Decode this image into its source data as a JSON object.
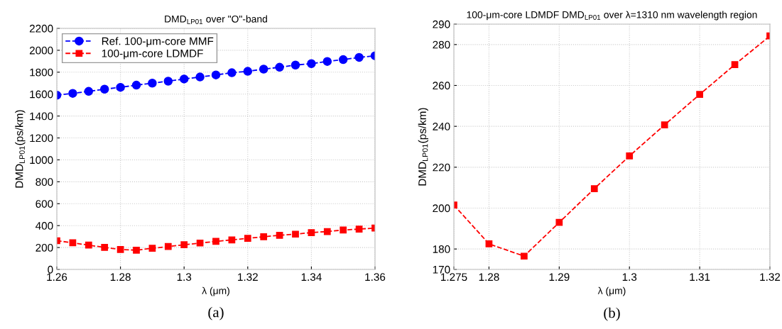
{
  "chart_data": [
    {
      "type": "line",
      "title": "DMD$_{LP01}$ over \"O\"-band",
      "xlabel": "λ (μm)",
      "ylabel": "DMD$_{LP01}$(ps/km)",
      "x": [
        1.26,
        1.265,
        1.27,
        1.275,
        1.28,
        1.285,
        1.29,
        1.295,
        1.3,
        1.305,
        1.31,
        1.315,
        1.32,
        1.325,
        1.33,
        1.335,
        1.34,
        1.345,
        1.35,
        1.355,
        1.36
      ],
      "series": [
        {
          "name": "Ref. 100-μm-core MMF",
          "color": "#0000ff",
          "marker": "circle",
          "values": [
            1590,
            1607,
            1625,
            1645,
            1662,
            1682,
            1700,
            1718,
            1738,
            1756,
            1775,
            1795,
            1808,
            1828,
            1845,
            1865,
            1878,
            1898,
            1915,
            1935,
            1950
          ]
        },
        {
          "name": "100-μm-core LDMDF",
          "color": "#ff0000",
          "marker": "square",
          "values": [
            262,
            243,
            222,
            201,
            182,
            176,
            193,
            209,
            225,
            241,
            256,
            270,
            284,
            298,
            312,
            322,
            336,
            346,
            360,
            368,
            378
          ]
        }
      ],
      "xlim": [
        1.26,
        1.36
      ],
      "xticks": [
        1.26,
        1.28,
        {
          "value": 1.3,
          "label": "1.3"
        },
        1.32,
        1.34,
        1.36
      ],
      "ylim": [
        0,
        2200
      ],
      "yticks": [
        0,
        200,
        400,
        600,
        800,
        1000,
        1200,
        1400,
        1600,
        1800,
        2000,
        2200
      ],
      "grid": true,
      "legend": "top left",
      "line_style": "dashed",
      "annotations": [
        "(a)"
      ]
    },
    {
      "type": "line",
      "title": "100-μm-core LDMDF DMD$_{LP01}$ over λ=1310 nm wavelength region",
      "xlabel": "λ (μm)",
      "ylabel": "DMD$_{LP01}$(ps/km)",
      "x": [
        1.275,
        1.28,
        1.285,
        1.29,
        1.295,
        1.3,
        1.305,
        1.31,
        1.315,
        1.32
      ],
      "series": [
        {
          "color": "#ff0000",
          "marker": "square",
          "values": [
            201.5,
            182.5,
            176.5,
            193,
            209.5,
            225.5,
            240.7,
            255.6,
            270.2,
            284.2
          ]
        }
      ],
      "xlim": [
        1.275,
        1.32
      ],
      "xticks": [
        1.275,
        1.28,
        1.29,
        {
          "value": 1.3,
          "label": "1.3"
        },
        1.31,
        1.32
      ],
      "ylim": [
        170,
        290
      ],
      "yticks": [
        170,
        180,
        200,
        220,
        240,
        260,
        280,
        290
      ],
      "grid": true,
      "legend": false,
      "line_style": "dashed",
      "annotations": [
        "(b)"
      ]
    }
  ]
}
